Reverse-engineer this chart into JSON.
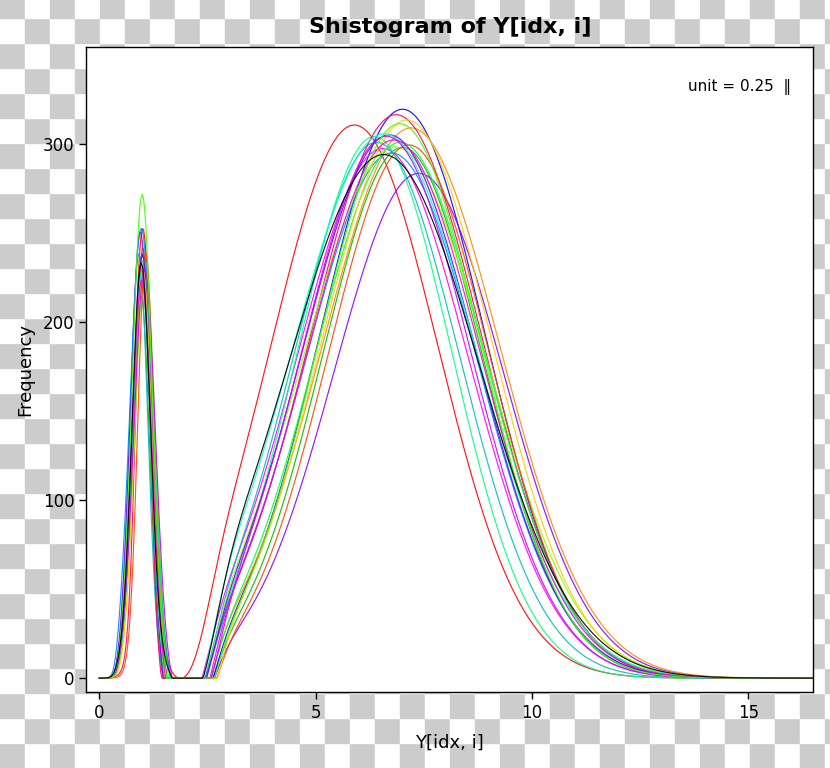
{
  "title": "Shistogram of Y[idx, i]",
  "xlabel": "Y[idx, i]",
  "ylabel": "Frequency",
  "xlim": [
    -0.3,
    16.5
  ],
  "ylim": [
    -8,
    355
  ],
  "xticks": [
    0,
    5,
    10,
    15
  ],
  "yticks": [
    0,
    100,
    200,
    300
  ],
  "annotation": "unit = 0.25  ‖",
  "n_curves": 20,
  "seed": 42,
  "background_color": "#ffffff",
  "checker_size": 25,
  "checker_color1": "#cccccc",
  "checker_color2": "#ffffff",
  "colors": [
    "#FF0000",
    "#00BB00",
    "#0000FF",
    "#FF00FF",
    "#00BBBB",
    "#FF8800",
    "#8800FF",
    "#00FF88",
    "#FF0066",
    "#88FF00",
    "#0088FF",
    "#FF4400",
    "#00FF44",
    "#6600FF",
    "#FFCC00",
    "#00FFCC",
    "#CC00FF",
    "#FF00CC",
    "#44FF00",
    "#000000"
  ]
}
